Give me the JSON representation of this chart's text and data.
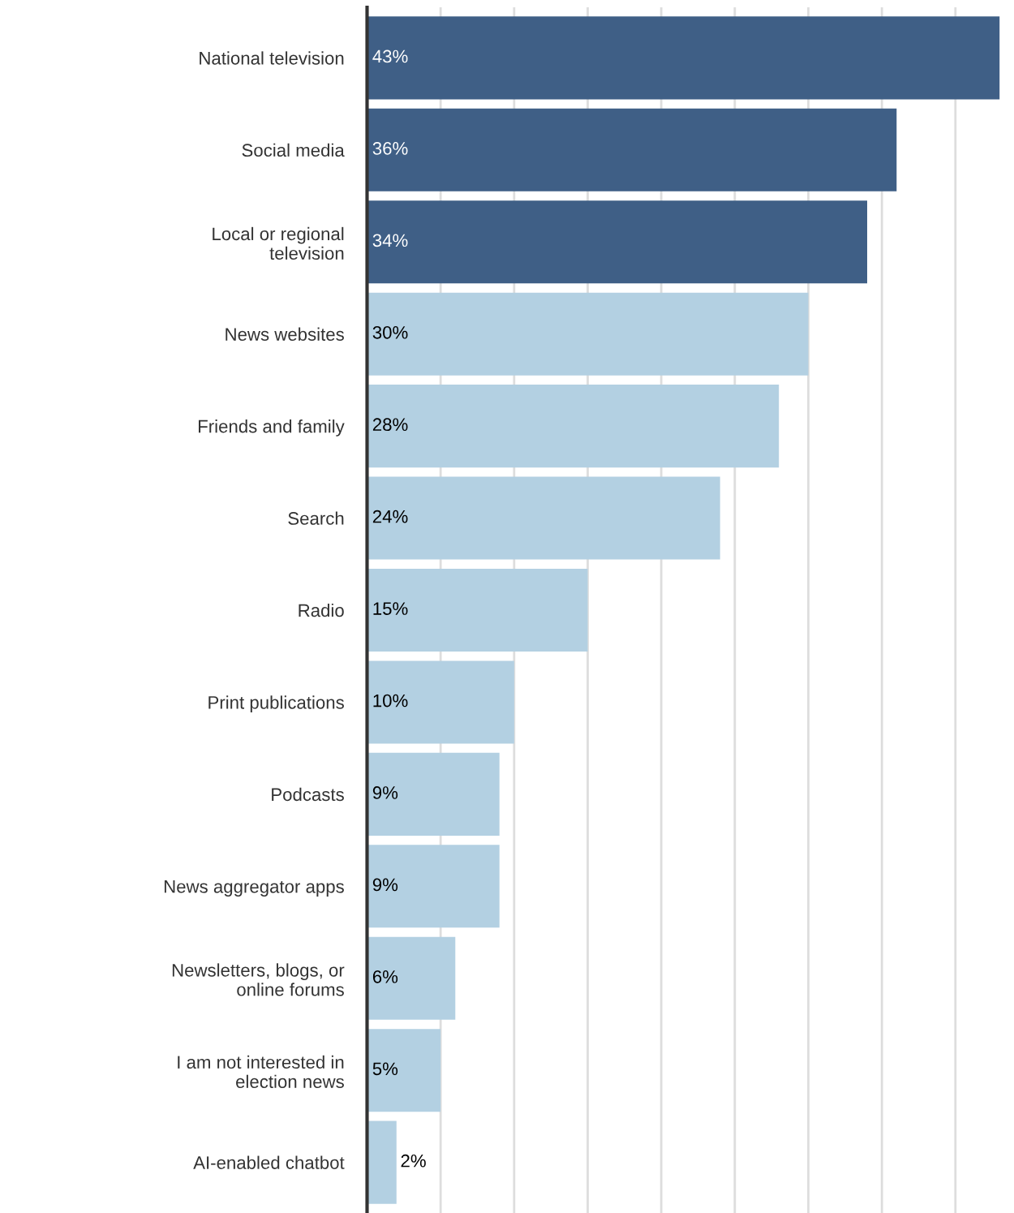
{
  "chart_data": {
    "type": "bar",
    "orientation": "horizontal",
    "categories": [
      "National television",
      "Social media",
      "Local or regional\ntelevision",
      "News websites",
      "Friends and family",
      "Search",
      "Radio",
      "Print publications",
      "Podcasts",
      "News aggregator apps",
      "Newsletters, blogs, or\nonline forums",
      "I am not interested in\nelection news",
      "AI-enabled chatbot"
    ],
    "values": [
      43,
      36,
      34,
      30,
      28,
      24,
      15,
      10,
      9,
      9,
      6,
      5,
      2
    ],
    "value_labels": [
      "43%",
      "36%",
      "34%",
      "30%",
      "28%",
      "24%",
      "15%",
      "10%",
      "9%",
      "9%",
      "6%",
      "5%",
      "2%"
    ],
    "colors": [
      "#3f5f86",
      "#3f5f86",
      "#3f5f86",
      "#b3d0e2",
      "#b3d0e2",
      "#b3d0e2",
      "#b3d0e2",
      "#b3d0e2",
      "#b3d0e2",
      "#b3d0e2",
      "#b3d0e2",
      "#b3d0e2",
      "#b3d0e2"
    ],
    "xticks": [
      {
        "value": 5,
        "label": null
      },
      {
        "value": 10,
        "label": null
      },
      {
        "value": 15,
        "label": null
      },
      {
        "value": 20,
        "label": null
      },
      {
        "value": 25,
        "label": null
      },
      {
        "value": 30,
        "label": null
      },
      {
        "value": 35,
        "label": null
      },
      {
        "value": 40,
        "label": null
      }
    ],
    "grid": "x",
    "legend": false
  }
}
